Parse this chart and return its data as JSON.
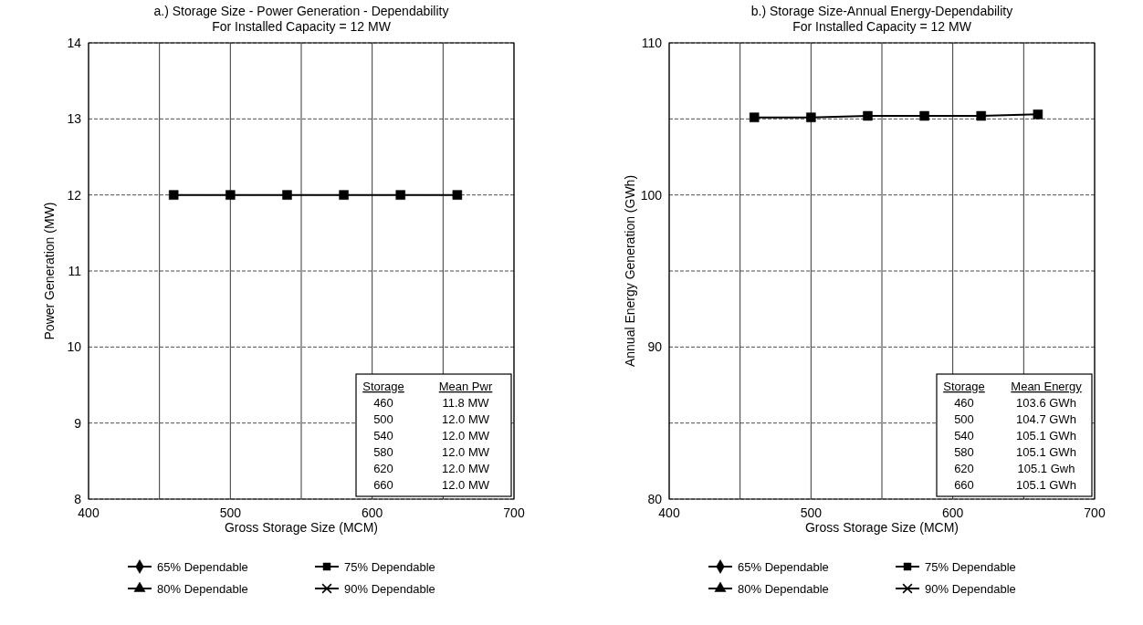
{
  "chart_data": [
    {
      "type": "line",
      "title": "a.) Storage Size - Power Generation - Dependability",
      "subtitle": "For Installed Capacity = 12 MW",
      "xlabel": "Gross Storage Size (MCM)",
      "ylabel": "Power Generation (MW)",
      "x": [
        460,
        500,
        540,
        580,
        620,
        660
      ],
      "series": [
        {
          "name": "65% Dependable",
          "color": "#000000",
          "marker": "diamond",
          "values": [
            null,
            null,
            null,
            null,
            null,
            null
          ]
        },
        {
          "name": "75% Dependable",
          "color": "#000000",
          "marker": "square",
          "values": [
            12,
            12,
            12,
            12,
            12,
            12
          ]
        },
        {
          "name": "80% Dependable",
          "color": "#000000",
          "marker": "triangle",
          "values": [
            null,
            null,
            null,
            null,
            null,
            null
          ]
        },
        {
          "name": "90% Dependable",
          "color": "#000000",
          "marker": "cross",
          "values": [
            null,
            null,
            null,
            null,
            null,
            null
          ]
        }
      ],
      "xlim": [
        400,
        700
      ],
      "xticks": [
        400,
        {
          "value": 450,
          "label": null
        },
        500,
        {
          "value": 550,
          "label": null
        },
        600,
        {
          "value": 650,
          "label": null
        },
        700
      ],
      "ylim": [
        8,
        14
      ],
      "yticks": [
        8,
        9,
        10,
        11,
        12,
        13,
        14
      ],
      "grid": true,
      "legend": "bottom",
      "line_style": "solid",
      "annotations": [
        "Storage",
        "Mean Pwr",
        "460",
        "11.8 MW",
        "500",
        "12.0 MW",
        "540",
        "12.0 MW",
        "580",
        "12.0 MW",
        "620",
        "12.0 MW",
        "660",
        "12.0 MW"
      ]
    },
    {
      "type": "line",
      "title": "b.) Storage Size-Annual Energy-Dependability",
      "subtitle": "For Installed Capacity = 12 MW",
      "xlabel": "Gross Storage Size (MCM)",
      "ylabel": "Annual Energy Generation (GWh)",
      "x": [
        460,
        500,
        540,
        580,
        620,
        660
      ],
      "series": [
        {
          "name": "65% Dependable",
          "color": "#000000",
          "marker": "diamond",
          "values": [
            null,
            null,
            null,
            null,
            null,
            null
          ]
        },
        {
          "name": "75% Dependable",
          "color": "#000000",
          "marker": "square",
          "values": [
            105.1,
            105.1,
            105.2,
            105.2,
            105.2,
            105.3
          ]
        },
        {
          "name": "80% Dependable",
          "color": "#000000",
          "marker": "triangle",
          "values": [
            null,
            null,
            null,
            null,
            null,
            null
          ]
        },
        {
          "name": "90% Dependable",
          "color": "#000000",
          "marker": "cross",
          "values": [
            null,
            null,
            null,
            null,
            null,
            null
          ]
        }
      ],
      "xlim": [
        400,
        700
      ],
      "xticks": [
        400,
        {
          "value": 450,
          "label": null
        },
        500,
        {
          "value": 550,
          "label": null
        },
        600,
        {
          "value": 650,
          "label": null
        },
        700
      ],
      "ylim": [
        80,
        110
      ],
      "yticks": [
        80,
        {
          "value": 85,
          "label": null
        },
        90,
        {
          "value": 95,
          "label": null
        },
        100,
        {
          "value": 105,
          "label": null
        },
        110
      ],
      "grid": true,
      "legend": "bottom",
      "line_style": "solid",
      "annotations": [
        "Storage",
        "Mean Energy",
        "460",
        "103.6 GWh",
        "500",
        "104.7 GWh",
        "540",
        "105.1 GWh",
        "580",
        "105.1 GWh",
        "620",
        "105.1 Gwh",
        "660",
        "105.1 GWh"
      ]
    }
  ]
}
